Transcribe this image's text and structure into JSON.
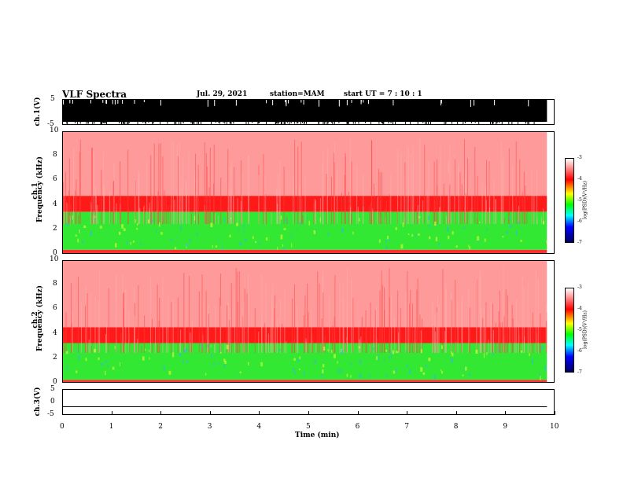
{
  "header": {
    "title": "VLF Spectra",
    "date": "Jul. 29, 2021",
    "station": "station=MAM",
    "start": "start UT =  7 : 10 : 1"
  },
  "chart_data": [
    {
      "type": "area",
      "name": "ch1-waveform",
      "ylabel": "ch.1(V)",
      "ylim": [
        -5,
        5
      ],
      "yticks": [
        "5",
        "-5"
      ],
      "xlim": [
        0,
        10
      ],
      "data_extent_min": 9.83
    },
    {
      "type": "heatmap",
      "name": "ch1-spectrogram",
      "ylabel": "ch.1\nFrequency (kHz)",
      "ylabel_line1": "ch.1",
      "ylabel_line2": "Frequency (kHz)",
      "ylim": [
        0,
        10
      ],
      "yticks": [
        "0",
        "2",
        "4",
        "6",
        "8",
        "10"
      ],
      "xlim": [
        0,
        10
      ],
      "bands_khz": [
        {
          "from": 0,
          "to": 0.4,
          "color": "#ff3030"
        },
        {
          "from": 0.4,
          "to": 3.5,
          "color": "#33e833"
        },
        {
          "from": 3.5,
          "to": 4.8,
          "color": "#ff1a1a"
        },
        {
          "from": 4.8,
          "to": 10,
          "color": "#ff9a9a"
        }
      ],
      "colorbar": {
        "label": "log(PSD)(V²/Hz)",
        "ticks": [
          "-3",
          "-4",
          "-5",
          "-6",
          "-7"
        ],
        "range": [
          -7,
          -3
        ]
      }
    },
    {
      "type": "heatmap",
      "name": "ch2-spectrogram",
      "ylabel_line1": "ch.2",
      "ylabel_line2": "Frequency (kHz)",
      "ylim": [
        0,
        10
      ],
      "yticks": [
        "0",
        "2",
        "4",
        "6",
        "8",
        "10"
      ],
      "xlim": [
        0,
        10
      ],
      "bands_khz": [
        {
          "from": 0,
          "to": 0.3,
          "color": "#ff3030"
        },
        {
          "from": 0.3,
          "to": 3.3,
          "color": "#33e833"
        },
        {
          "from": 3.3,
          "to": 4.6,
          "color": "#ff1a1a"
        },
        {
          "from": 4.6,
          "to": 10,
          "color": "#ff9a9a"
        }
      ],
      "colorbar": {
        "label": "log(PSD)(V²/Hz)",
        "ticks": [
          "-3",
          "-4",
          "-5",
          "-6",
          "-7"
        ],
        "range": [
          -7,
          -3
        ]
      }
    },
    {
      "type": "line",
      "name": "ch3-waveform",
      "ylabel": "ch.3(V)",
      "ylim": [
        -5,
        5
      ],
      "yticks": [
        "5",
        "0",
        "-5"
      ],
      "xlim": [
        0,
        10
      ],
      "value": -1.5,
      "x_end": 9.83
    }
  ],
  "xaxis": {
    "label": "Time (min)",
    "ticks": [
      "0",
      "1",
      "2",
      "3",
      "4",
      "5",
      "6",
      "7",
      "8",
      "9",
      "10"
    ]
  },
  "colors": {
    "spectrogram_low": "#ff3030",
    "spectrogram_mid": "#33e833",
    "spectrogram_high": "#ff9a9a"
  }
}
